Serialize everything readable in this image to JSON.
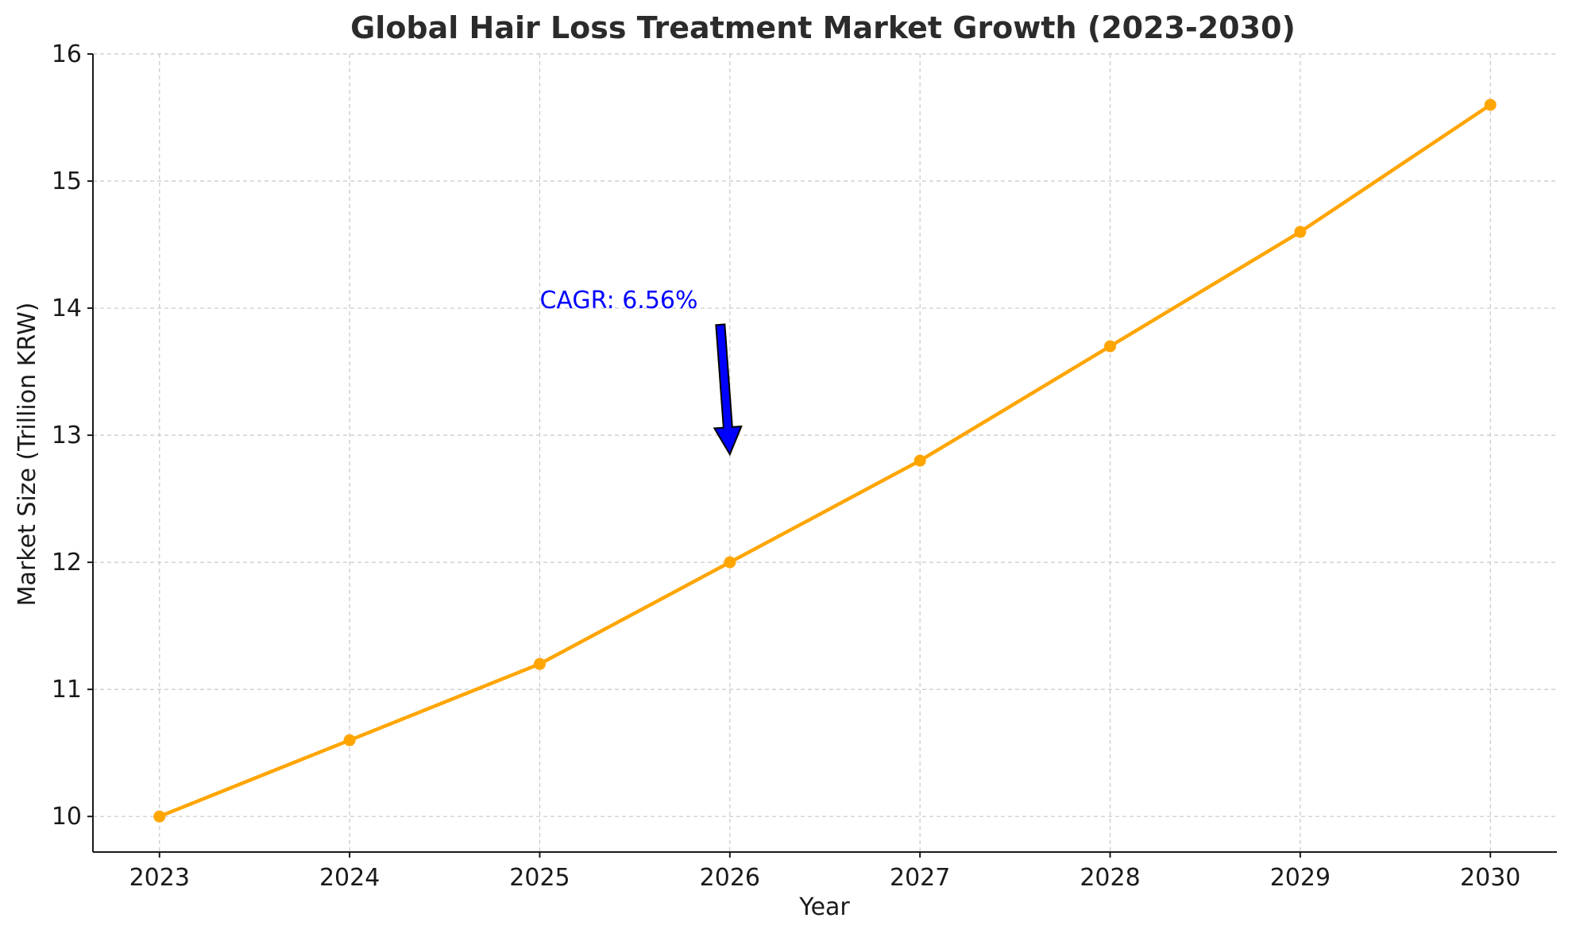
{
  "chart_data": {
    "type": "line",
    "title": "Global Hair Loss Treatment Market Growth (2023-2030)",
    "xlabel": "Year",
    "ylabel": "Market Size (Trillion KRW)",
    "x": [
      "2023",
      "2024",
      "2025",
      "2026",
      "2027",
      "2028",
      "2029",
      "2030"
    ],
    "series": [
      {
        "name": "Market Size",
        "values": [
          10.0,
          10.6,
          11.2,
          12.0,
          12.8,
          13.7,
          14.6,
          15.6
        ]
      }
    ],
    "ylim": [
      9.72,
      16.0
    ],
    "yticks": [
      10,
      11,
      12,
      13,
      14,
      15,
      16
    ],
    "grid": true,
    "line_color": "#ffa500",
    "annotation": {
      "text": "CAGR: 6.56%",
      "text_color": "#0000ff",
      "arrow_color": "#0000ff",
      "text_pos": {
        "x": 2025.0,
        "y": 14.0
      },
      "arrow_tip": {
        "x": 2026.0,
        "y": 12.85
      },
      "arrow_tail": {
        "x": 2025.95,
        "y": 13.87
      }
    }
  }
}
